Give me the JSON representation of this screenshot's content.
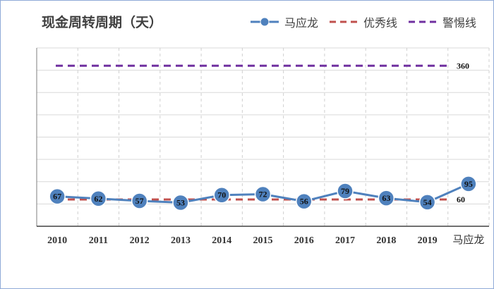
{
  "chart_data": {
    "type": "line",
    "title": "现金周转周期（天）",
    "categories": [
      "2010",
      "2011",
      "2012",
      "2013",
      "2014",
      "2015",
      "2016",
      "2017",
      "2018",
      "2019",
      "马应龙"
    ],
    "series": [
      {
        "name": "马应龙",
        "values": [
          67,
          62,
          57,
          53,
          70,
          72,
          56,
          79,
          63,
          54,
          95
        ],
        "color": "#4f81bd",
        "style": "solid-markers"
      }
    ],
    "reference_lines": [
      {
        "name": "优秀线",
        "value": 60,
        "label": "60",
        "color": "#c0504d",
        "style": "dashed"
      },
      {
        "name": "警惕线",
        "value": 360,
        "label": "360",
        "color": "#7030a0",
        "style": "dashed"
      }
    ],
    "ylim": [
      0,
      400
    ],
    "y_axis_labels_shown": false,
    "grid": true,
    "legend_position": "top-right"
  }
}
